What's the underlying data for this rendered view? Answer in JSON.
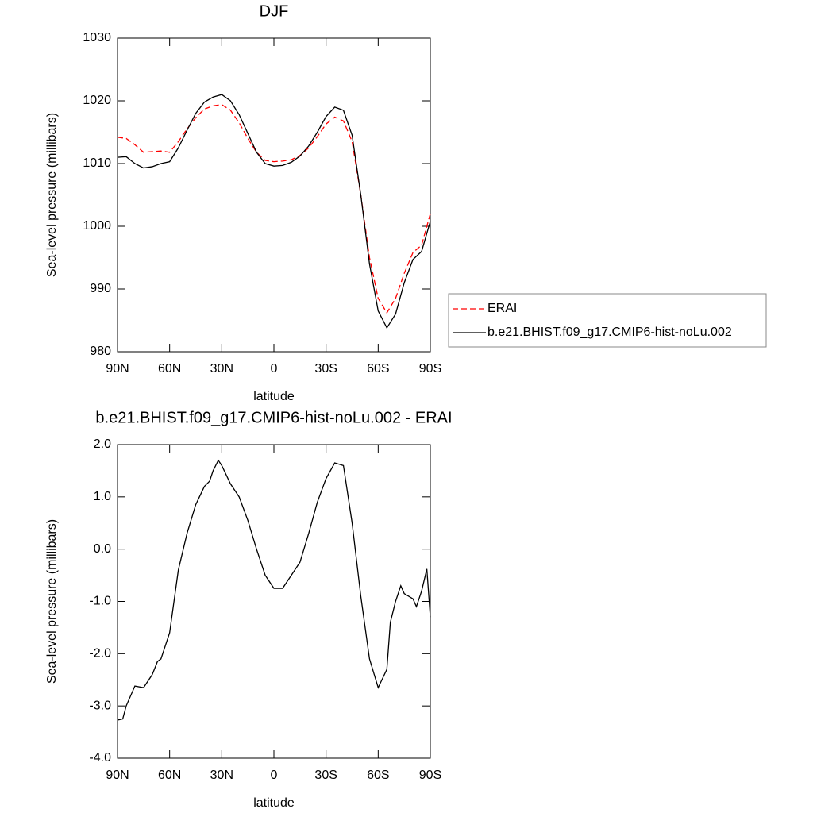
{
  "chart_data": [
    {
      "type": "line",
      "title": "DJF",
      "xlabel": "latitude",
      "ylabel": "Sea-level pressure (millibars)",
      "x": [
        90,
        85,
        80,
        75,
        70,
        65,
        60,
        55,
        50,
        45,
        40,
        35,
        30,
        25,
        20,
        15,
        10,
        5,
        0,
        -5,
        -10,
        -15,
        -20,
        -25,
        -30,
        -35,
        -40,
        -45,
        -50,
        -55,
        -60,
        -65,
        -70,
        -75,
        -80,
        -85,
        -90
      ],
      "series": [
        {
          "name": "ERAI",
          "color": "#ff0000",
          "dash": true,
          "values": [
            1014.2,
            1014.0,
            1013.0,
            1011.8,
            1011.9,
            1012.0,
            1011.8,
            1013.5,
            1015.5,
            1017.3,
            1018.7,
            1019.2,
            1019.4,
            1018.5,
            1016.5,
            1014.0,
            1011.8,
            1010.5,
            1010.3,
            1010.4,
            1010.6,
            1011.3,
            1012.5,
            1014.3,
            1016.3,
            1017.4,
            1016.8,
            1013.5,
            1005.0,
            995.0,
            988.5,
            986.2,
            988.5,
            992.5,
            995.8,
            997.0,
            1002.0
          ]
        },
        {
          "name": "b.e21.BHIST.f09_g17.CMIP6-hist-noLu.002",
          "color": "#000000",
          "dash": false,
          "values": [
            1011.0,
            1011.1,
            1010.0,
            1009.3,
            1009.5,
            1010.0,
            1010.3,
            1012.5,
            1015.3,
            1018.0,
            1019.8,
            1020.6,
            1021.0,
            1020.0,
            1017.8,
            1014.8,
            1011.8,
            1010.0,
            1009.6,
            1009.7,
            1010.2,
            1011.2,
            1012.8,
            1015.0,
            1017.5,
            1019.0,
            1018.5,
            1014.5,
            1005.0,
            994.0,
            986.5,
            983.8,
            986.0,
            991.0,
            994.7,
            996.0,
            1000.8
          ]
        }
      ],
      "xlim": [
        90,
        -90
      ],
      "xticks": [
        {
          "value": 90,
          "label": "90N"
        },
        {
          "value": 60,
          "label": "60N"
        },
        {
          "value": 30,
          "label": "30N"
        },
        0,
        {
          "value": -30,
          "label": "30S"
        },
        {
          "value": -60,
          "label": "60S"
        },
        {
          "value": -90,
          "label": "90S"
        }
      ],
      "ylim": [
        980,
        1030
      ],
      "yticks": [
        980,
        990,
        1000,
        1010,
        1020,
        1030
      ],
      "legend": "right"
    },
    {
      "type": "line",
      "title": "b.e21.BHIST.f09_g17.CMIP6-hist-noLu.002 - ERAI",
      "xlabel": "latitude",
      "ylabel": "Sea-level pressure (millibars)",
      "x": [
        90,
        87,
        85,
        80,
        75,
        70,
        67,
        65,
        60,
        55,
        50,
        45,
        40,
        37,
        35,
        32,
        30,
        25,
        20,
        15,
        10,
        5,
        0,
        -5,
        -10,
        -15,
        -20,
        -25,
        -30,
        -35,
        -40,
        -45,
        -50,
        -55,
        -60,
        -65,
        -67,
        -70,
        -73,
        -75,
        -80,
        -82,
        -85,
        -88,
        -90
      ],
      "series": [
        {
          "color": "#000000",
          "dash": false,
          "values": [
            -3.27,
            -3.25,
            -3.0,
            -2.62,
            -2.65,
            -2.4,
            -2.15,
            -2.1,
            -1.6,
            -0.4,
            0.3,
            0.85,
            1.2,
            1.3,
            1.5,
            1.7,
            1.6,
            1.25,
            1.0,
            0.55,
            0.0,
            -0.5,
            -0.75,
            -0.75,
            -0.5,
            -0.25,
            0.3,
            0.9,
            1.35,
            1.65,
            1.6,
            0.5,
            -0.9,
            -2.1,
            -2.65,
            -2.3,
            -1.4,
            -1.0,
            -0.7,
            -0.85,
            -0.95,
            -1.1,
            -0.8,
            -0.38,
            -1.3
          ]
        }
      ],
      "xlim": [
        90,
        -90
      ],
      "xticks": [
        {
          "value": 90,
          "label": "90N"
        },
        {
          "value": 60,
          "label": "60N"
        },
        {
          "value": 30,
          "label": "30N"
        },
        0,
        {
          "value": -30,
          "label": "30S"
        },
        {
          "value": -60,
          "label": "60S"
        },
        {
          "value": -90,
          "label": "90S"
        }
      ],
      "ylim": [
        -4,
        2
      ],
      "yticks": [
        {
          "value": -4,
          "label": "-4.0"
        },
        {
          "value": -3,
          "label": "-3.0"
        },
        {
          "value": -2,
          "label": "-2.0"
        },
        {
          "value": -1,
          "label": "-1.0"
        },
        {
          "value": 0,
          "label": "0.0"
        },
        {
          "value": 1,
          "label": "1.0"
        },
        {
          "value": 2,
          "label": "2.0"
        }
      ]
    }
  ]
}
